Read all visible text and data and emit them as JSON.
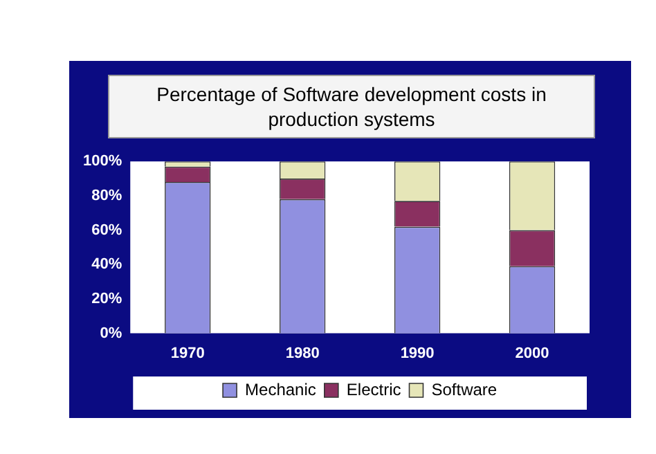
{
  "chart_data": {
    "type": "bar",
    "title": "Percentage of Software development costs in production systems",
    "categories": [
      "1970",
      "1980",
      "1990",
      "2000"
    ],
    "series": [
      {
        "name": "Mechanic",
        "color": "#9090e0",
        "values": [
          88,
          78,
          62,
          39
        ]
      },
      {
        "name": "Electric",
        "color": "#8a3060",
        "values": [
          9,
          12,
          15,
          21
        ]
      },
      {
        "name": "Software",
        "color": "#e6e6b8",
        "values": [
          3,
          10,
          23,
          40
        ]
      }
    ],
    "stacked": true,
    "ylim": [
      0,
      100
    ],
    "yticks": [
      {
        "value": 0,
        "label": "0%"
      },
      {
        "value": 20,
        "label": "20%"
      },
      {
        "value": 40,
        "label": "40%"
      },
      {
        "value": 60,
        "label": "60%"
      },
      {
        "value": 80,
        "label": "80%"
      },
      {
        "value": 100,
        "label": "100%"
      }
    ],
    "grid": false,
    "legend": "bottom"
  }
}
